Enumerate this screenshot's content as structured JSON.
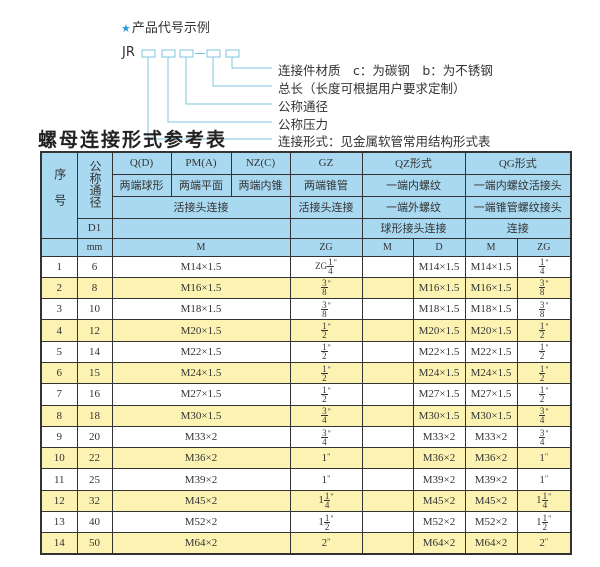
{
  "example": {
    "title": "产品代号示例",
    "star_icon": "star-icon",
    "code_prefix": "JR",
    "separator": "-",
    "labels": [
      "连接件材质　c：为碳钢　b：为不锈钢",
      "总长（长度可根据用户要求定制）",
      "公称通径",
      "公称压力",
      "连接形式：见金属软管常用结构形式表"
    ],
    "line_color": "#7cc6e0"
  },
  "table_title": "螺母连接形式参考表",
  "table": {
    "header": {
      "seq": "序号",
      "nominal": "公称通径",
      "qd": "Q(D)",
      "pm": "PM(A)",
      "nz": "NZ(C)",
      "gz": "GZ",
      "qz": "QZ形式",
      "qg": "QG形式",
      "qd_desc": "两端球形",
      "pm_desc": "两端平面",
      "nz_desc": "两端内锥",
      "gz_desc": "两端锥管",
      "qz_desc": "一端内螺纹",
      "qg_desc": "一端内螺纹活接头",
      "live_joint": "活接头连接",
      "gz_joint": "活接头连接",
      "qz_desc2": "一端外螺纹",
      "qg_desc2": "一端锥管螺纹接头",
      "d1": "D1",
      "qz_desc3": "球形接头连接",
      "qg_desc3": "连接",
      "mm": "mm",
      "m": "M",
      "zg": "ZG",
      "qz_m": "M",
      "qz_d": "D",
      "qg_m": "M",
      "qg_zg": "ZG"
    },
    "rows": [
      {
        "no": "1",
        "d1": "6",
        "m": "M14×1.5",
        "zg": {
          "pre": "ZG",
          "whole": "",
          "num": "1",
          "den": "4",
          "sfx": "\""
        },
        "qz_m": "",
        "qz_d": "M14×1.5",
        "qg_m": "M14×1.5",
        "qg_zg": {
          "pre": "",
          "whole": "",
          "num": "1",
          "den": "4",
          "sfx": "\""
        }
      },
      {
        "no": "2",
        "d1": "8",
        "m": "M16×1.5",
        "zg": {
          "pre": "",
          "whole": "",
          "num": "3",
          "den": "8",
          "sfx": "\""
        },
        "qz_m": "",
        "qz_d": "M16×1.5",
        "qg_m": "M16×1.5",
        "qg_zg": {
          "pre": "",
          "whole": "",
          "num": "3",
          "den": "8",
          "sfx": "\""
        }
      },
      {
        "no": "3",
        "d1": "10",
        "m": "M18×1.5",
        "zg": {
          "pre": "",
          "whole": "",
          "num": "3",
          "den": "8",
          "sfx": "\""
        },
        "qz_m": "",
        "qz_d": "M18×1.5",
        "qg_m": "M18×1.5",
        "qg_zg": {
          "pre": "",
          "whole": "",
          "num": "3",
          "den": "8",
          "sfx": "\""
        }
      },
      {
        "no": "4",
        "d1": "12",
        "m": "M20×1.5",
        "zg": {
          "pre": "",
          "whole": "",
          "num": "1",
          "den": "2",
          "sfx": "\""
        },
        "qz_m": "",
        "qz_d": "M20×1.5",
        "qg_m": "M20×1.5",
        "qg_zg": {
          "pre": "",
          "whole": "",
          "num": "1",
          "den": "2",
          "sfx": "\""
        }
      },
      {
        "no": "5",
        "d1": "14",
        "m": "M22×1.5",
        "zg": {
          "pre": "",
          "whole": "",
          "num": "1",
          "den": "2",
          "sfx": "\""
        },
        "qz_m": "",
        "qz_d": "M22×1.5",
        "qg_m": "M22×1.5",
        "qg_zg": {
          "pre": "",
          "whole": "",
          "num": "1",
          "den": "2",
          "sfx": "\""
        }
      },
      {
        "no": "6",
        "d1": "15",
        "m": "M24×1.5",
        "zg": {
          "pre": "",
          "whole": "",
          "num": "1",
          "den": "2",
          "sfx": "\""
        },
        "qz_m": "",
        "qz_d": "M24×1.5",
        "qg_m": "M24×1.5",
        "qg_zg": {
          "pre": "",
          "whole": "",
          "num": "1",
          "den": "2",
          "sfx": "\""
        }
      },
      {
        "no": "7",
        "d1": "16",
        "m": "M27×1.5",
        "zg": {
          "pre": "",
          "whole": "",
          "num": "1",
          "den": "2",
          "sfx": "\""
        },
        "qz_m": "",
        "qz_d": "M27×1.5",
        "qg_m": "M27×1.5",
        "qg_zg": {
          "pre": "",
          "whole": "",
          "num": "1",
          "den": "2",
          "sfx": "\""
        }
      },
      {
        "no": "8",
        "d1": "18",
        "m": "M30×1.5",
        "zg": {
          "pre": "",
          "whole": "",
          "num": "3",
          "den": "4",
          "sfx": "\""
        },
        "qz_m": "",
        "qz_d": "M30×1.5",
        "qg_m": "M30×1.5",
        "qg_zg": {
          "pre": "",
          "whole": "",
          "num": "3",
          "den": "4",
          "sfx": "\""
        }
      },
      {
        "no": "9",
        "d1": "20",
        "m": "M33×2",
        "zg": {
          "pre": "",
          "whole": "",
          "num": "3",
          "den": "4",
          "sfx": "\""
        },
        "qz_m": "",
        "qz_d": "M33×2",
        "qg_m": "M33×2",
        "qg_zg": {
          "pre": "",
          "whole": "",
          "num": "3",
          "den": "4",
          "sfx": "\""
        }
      },
      {
        "no": "10",
        "d1": "22",
        "m": "M36×2",
        "zg": {
          "pre": "",
          "whole": "1",
          "num": "",
          "den": "",
          "sfx": "\""
        },
        "qz_m": "",
        "qz_d": "M36×2",
        "qg_m": "M36×2",
        "qg_zg": {
          "pre": "",
          "whole": "1",
          "num": "",
          "den": "",
          "sfx": "\""
        }
      },
      {
        "no": "11",
        "d1": "25",
        "m": "M39×2",
        "zg": {
          "pre": "",
          "whole": "1",
          "num": "",
          "den": "",
          "sfx": "\""
        },
        "qz_m": "",
        "qz_d": "M39×2",
        "qg_m": "M39×2",
        "qg_zg": {
          "pre": "",
          "whole": "1",
          "num": "",
          "den": "",
          "sfx": "\""
        }
      },
      {
        "no": "12",
        "d1": "32",
        "m": "M45×2",
        "zg": {
          "pre": "",
          "whole": "1",
          "num": "1",
          "den": "4",
          "sfx": "\""
        },
        "qz_m": "",
        "qz_d": "M45×2",
        "qg_m": "M45×2",
        "qg_zg": {
          "pre": "",
          "whole": "1",
          "num": "1",
          "den": "4",
          "sfx": "\""
        }
      },
      {
        "no": "13",
        "d1": "40",
        "m": "M52×2",
        "zg": {
          "pre": "",
          "whole": "1",
          "num": "1",
          "den": "2",
          "sfx": "\""
        },
        "qz_m": "",
        "qz_d": "M52×2",
        "qg_m": "M52×2",
        "qg_zg": {
          "pre": "",
          "whole": "1",
          "num": "1",
          "den": "2",
          "sfx": "\""
        }
      },
      {
        "no": "14",
        "d1": "50",
        "m": "M64×2",
        "zg": {
          "pre": "",
          "whole": "2",
          "num": "",
          "den": "",
          "sfx": "\""
        },
        "qz_m": "",
        "qz_d": "M64×2",
        "qg_m": "M64×2",
        "qg_zg": {
          "pre": "",
          "whole": "2",
          "num": "",
          "den": "",
          "sfx": "\""
        }
      }
    ],
    "colors": {
      "header_bg": "#a9d9f1",
      "alt_row_bg": "#fcf3b2",
      "row_bg": "#ffffff"
    }
  }
}
